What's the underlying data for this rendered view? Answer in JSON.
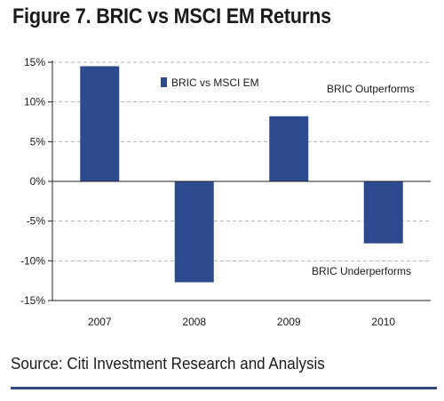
{
  "figure": {
    "title": "Figure 7. BRIC vs MSCI EM Returns",
    "source": "Source: Citi Investment Research and Analysis"
  },
  "colors": {
    "bar": "#2e4a8e",
    "axis": "#222222",
    "grid": "#b3b3b3",
    "rule": "#31497f"
  },
  "chart_data": {
    "type": "bar",
    "categories": [
      "2007",
      "2008",
      "2009",
      "2010"
    ],
    "series": [
      {
        "name": "BRIC vs MSCI EM",
        "values": [
          14.5,
          -12.7,
          8.2,
          -7.8
        ]
      }
    ],
    "ylim": [
      -15,
      15
    ],
    "yticks": [
      15,
      10,
      5,
      0,
      -5,
      -10,
      -15
    ],
    "ytick_labels": [
      "15%",
      "10%",
      "5%",
      "0%",
      "-5%",
      "-10%",
      "-15%"
    ],
    "grid": true,
    "legend": "top-center",
    "annotations": [
      "BRIC Outperforms",
      "BRIC Underperforms"
    ]
  }
}
